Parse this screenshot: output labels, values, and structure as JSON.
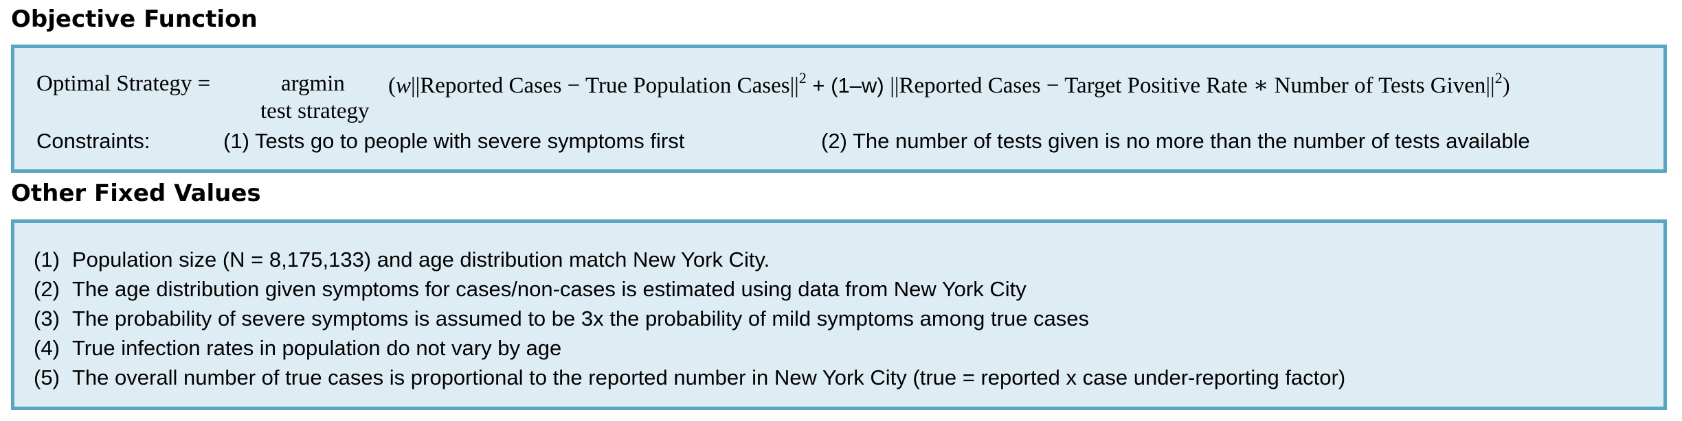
{
  "objective": {
    "title": "Objective Function",
    "equation": {
      "lhs": "Optimal Strategy =",
      "argmin": "argmin",
      "argmin_sub": "test strategy",
      "term_open": "(",
      "w": "w",
      "term1": "||Reported Cases  − True Population Cases||",
      "sq1": "2",
      "plus_part": " + (1–w) ",
      "term2": "||Reported Cases  − Target Positive Rate ∗ Number of Tests Given||",
      "sq2": "2",
      "term_close": ")"
    },
    "constraints_label": "Constraints:",
    "constraints": [
      "(1) Tests go to people with severe symptoms first",
      "(2) The number of tests given is no more than the number of tests available"
    ]
  },
  "fixed_values": {
    "title": "Other Fixed Values",
    "items": [
      {
        "num": "(1)",
        "text": "Population size (N = 8,175,133) and age distribution match New York City."
      },
      {
        "num": "(2)",
        "text": "The age distribution given symptoms for cases/non-cases is estimated using data from New York City"
      },
      {
        "num": "(3)",
        "text": "The probability of severe symptoms is assumed to be 3x the probability of mild symptoms among true cases"
      },
      {
        "num": "(4)",
        "text": "True infection rates in population do not vary by age"
      },
      {
        "num": "(5)",
        "text": "The overall number of true cases is proportional to the reported number in New York City (true = reported x case under-reporting factor)"
      }
    ]
  },
  "colors": {
    "box_fill": "#deedf4",
    "box_border": "#5aa6c2"
  }
}
